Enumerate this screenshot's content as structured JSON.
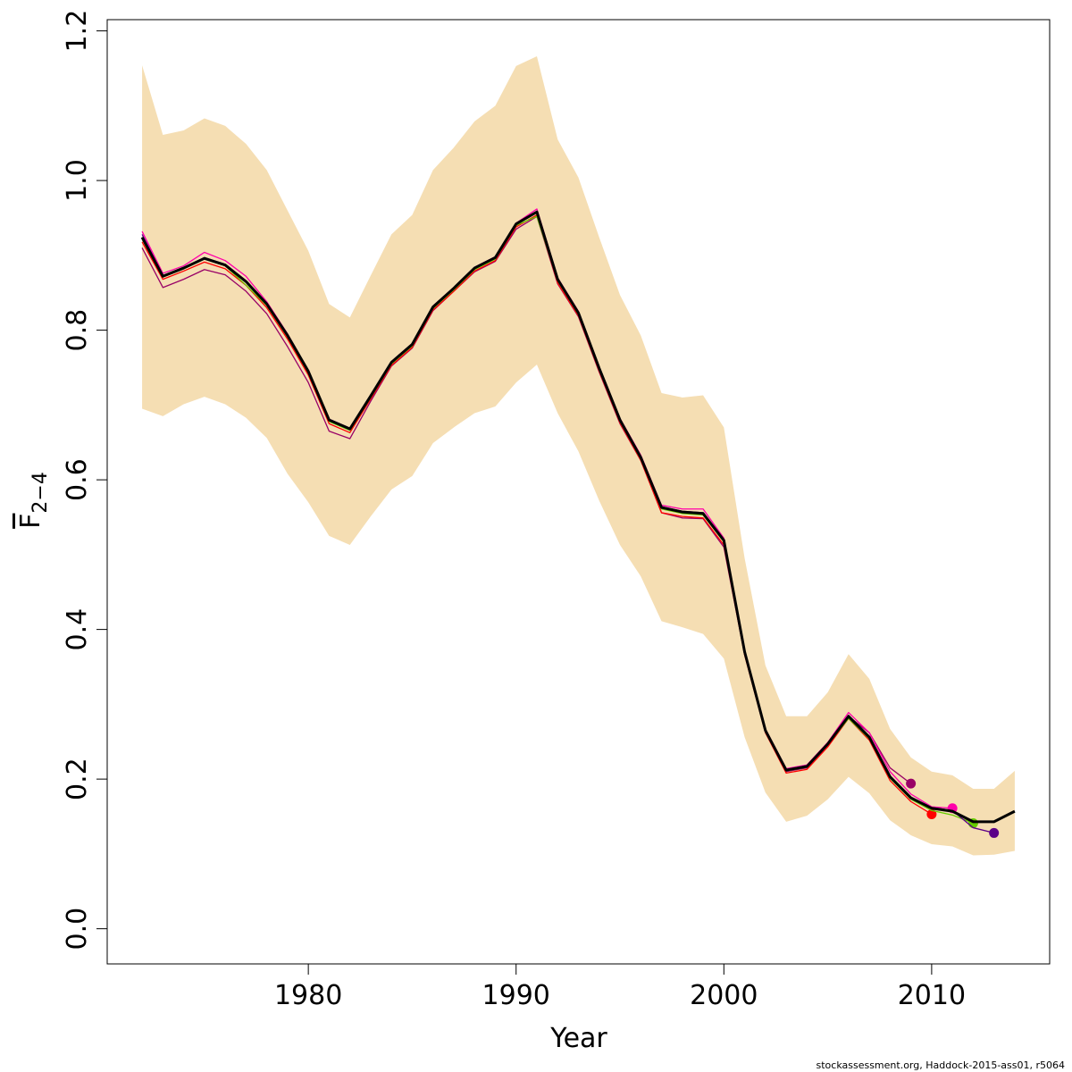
{
  "chart_data": {
    "type": "line",
    "x_label": "Year",
    "y_label": "F",
    "y_label_sub": "2−4",
    "footer": "stockassessment.org, Haddock-2015-ass01, r5064",
    "xlim": [
      1970.32,
      2015.68
    ],
    "ylim": [
      -0.047,
      1.215
    ],
    "xticks": [
      1980,
      1990,
      2000,
      2010
    ],
    "yticks": [
      {
        "value": 0,
        "label": "0.0"
      },
      0.2,
      0.4,
      0.6,
      0.8,
      {
        "value": 1,
        "label": "1.0"
      },
      1.2
    ],
    "x": [
      1972,
      1973,
      1974,
      1975,
      1976,
      1977,
      1978,
      1979,
      1980,
      1981,
      1982,
      1983,
      1984,
      1985,
      1986,
      1987,
      1988,
      1989,
      1990,
      1991,
      1992,
      1993,
      1994,
      1995,
      1996,
      1997,
      1998,
      1999,
      2000,
      2001,
      2002,
      2003,
      2004,
      2005,
      2006,
      2007,
      2008,
      2009,
      2010,
      2011,
      2012,
      2013,
      2014
    ],
    "band": {
      "color": "#f5deb3",
      "upper": [
        1.154,
        1.061,
        1.067,
        1.083,
        1.073,
        1.049,
        1.014,
        0.96,
        0.906,
        0.835,
        0.817,
        0.873,
        0.928,
        0.954,
        1.014,
        1.044,
        1.079,
        1.1,
        1.153,
        1.166,
        1.055,
        1.004,
        0.924,
        0.847,
        0.793,
        0.716,
        0.71,
        0.713,
        0.67,
        0.495,
        0.352,
        0.284,
        0.284,
        0.316,
        0.367,
        0.334,
        0.267,
        0.229,
        0.21,
        0.205,
        0.187,
        0.187,
        0.211
      ],
      "lower": [
        0.695,
        0.685,
        0.701,
        0.711,
        0.701,
        0.683,
        0.656,
        0.608,
        0.57,
        0.525,
        0.513,
        0.551,
        0.587,
        0.605,
        0.649,
        0.67,
        0.689,
        0.698,
        0.73,
        0.754,
        0.689,
        0.638,
        0.572,
        0.513,
        0.471,
        0.411,
        0.403,
        0.394,
        0.361,
        0.256,
        0.182,
        0.143,
        0.151,
        0.173,
        0.203,
        0.181,
        0.145,
        0.125,
        0.113,
        0.11,
        0.098,
        0.099,
        0.104
      ]
    },
    "series": [
      {
        "color": "#990066",
        "values": [
          0.91,
          0.857,
          0.868,
          0.881,
          0.874,
          0.852,
          0.822,
          0.778,
          0.73,
          0.665,
          0.655,
          0.705,
          0.752,
          0.776,
          0.826,
          0.852,
          0.878,
          0.892,
          0.935,
          0.952,
          0.862,
          0.818,
          0.744,
          0.675,
          0.626,
          0.556,
          0.549,
          0.548,
          0.51,
          0.366,
          0.262,
          0.21,
          0.215,
          0.245,
          0.284,
          0.262,
          0.215,
          0.194,
          null,
          null,
          null,
          null,
          null
        ]
      },
      {
        "color": "#ff0000",
        "values": [
          0.918,
          0.868,
          0.879,
          0.891,
          0.882,
          0.86,
          0.83,
          0.788,
          0.74,
          0.675,
          0.663,
          0.708,
          0.753,
          0.777,
          0.827,
          0.852,
          0.879,
          0.893,
          0.938,
          0.954,
          0.863,
          0.819,
          0.745,
          0.676,
          0.626,
          0.556,
          0.551,
          0.549,
          0.513,
          0.366,
          0.262,
          0.208,
          0.213,
          0.243,
          0.281,
          0.252,
          0.198,
          0.17,
          0.153,
          null,
          null,
          null,
          null
        ]
      },
      {
        "color": "#ff00aa",
        "values": [
          0.932,
          0.876,
          0.886,
          0.904,
          0.893,
          0.872,
          0.838,
          0.795,
          0.746,
          0.681,
          0.669,
          0.713,
          0.758,
          0.782,
          0.832,
          0.857,
          0.884,
          0.898,
          0.943,
          0.962,
          0.87,
          0.825,
          0.751,
          0.682,
          0.633,
          0.566,
          0.561,
          0.561,
          0.522,
          0.372,
          0.267,
          0.214,
          0.219,
          0.249,
          0.289,
          0.262,
          0.21,
          0.18,
          0.163,
          0.161,
          null,
          null,
          null
        ]
      },
      {
        "color": "#66cc00",
        "values": [
          0.922,
          0.871,
          0.882,
          0.895,
          0.886,
          0.86,
          0.833,
          0.791,
          0.743,
          0.678,
          0.666,
          0.71,
          0.755,
          0.779,
          0.829,
          0.854,
          0.881,
          0.895,
          0.94,
          0.952,
          0.866,
          0.821,
          0.747,
          0.678,
          0.628,
          0.561,
          0.555,
          0.553,
          0.517,
          0.368,
          0.263,
          0.211,
          0.216,
          0.246,
          0.281,
          0.254,
          0.201,
          0.173,
          0.158,
          0.152,
          0.141,
          null,
          null
        ]
      },
      {
        "color": "#5c0088",
        "values": [
          0.928,
          0.873,
          0.884,
          0.897,
          0.888,
          0.866,
          0.836,
          0.794,
          0.746,
          0.681,
          0.669,
          0.713,
          0.758,
          0.782,
          0.832,
          0.857,
          0.884,
          0.898,
          0.943,
          0.959,
          0.869,
          0.824,
          0.75,
          0.681,
          0.631,
          0.564,
          0.558,
          0.556,
          0.52,
          0.371,
          0.266,
          0.213,
          0.218,
          0.248,
          0.285,
          0.257,
          0.204,
          0.176,
          0.162,
          0.158,
          0.135,
          0.128,
          null
        ]
      },
      {
        "color": "#000000",
        "main": true,
        "values": [
          0.924,
          0.872,
          0.883,
          0.896,
          0.887,
          0.865,
          0.835,
          0.793,
          0.745,
          0.68,
          0.668,
          0.712,
          0.757,
          0.781,
          0.831,
          0.856,
          0.883,
          0.897,
          0.942,
          0.958,
          0.868,
          0.823,
          0.749,
          0.68,
          0.63,
          0.563,
          0.557,
          0.555,
          0.519,
          0.37,
          0.265,
          0.212,
          0.217,
          0.247,
          0.284,
          0.256,
          0.203,
          0.175,
          0.161,
          0.157,
          0.143,
          0.143,
          0.157
        ]
      }
    ]
  }
}
